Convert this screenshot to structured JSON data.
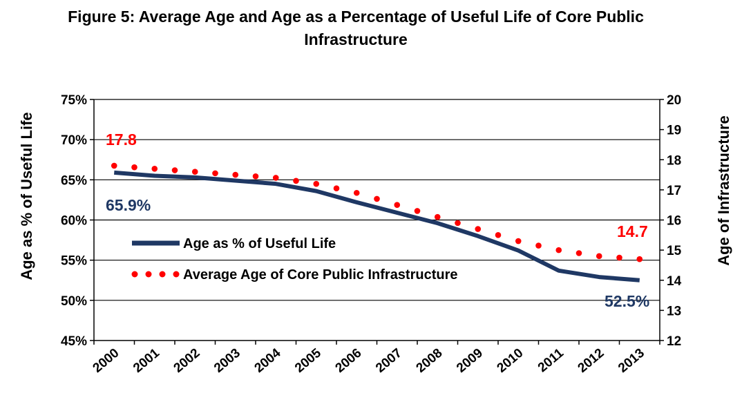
{
  "chart_data": {
    "type": "line",
    "title_line1": "Figure 5: Average Age and Age as a Percentage of Useful Life of Core Public",
    "title_line2": "Infrastructure",
    "categories": [
      "2000",
      "2001",
      "2002",
      "2003",
      "2004",
      "2005",
      "2006",
      "2007",
      "2008",
      "2009",
      "2010",
      "2011",
      "2012",
      "2013"
    ],
    "ylabel_left": "Age as % of Useful Life",
    "ylabel_right": "Age of Infrastructure",
    "ylim_left": [
      45,
      75
    ],
    "ylim_right": [
      12,
      20
    ],
    "yticks_left": [
      "45%",
      "50%",
      "55%",
      "60%",
      "65%",
      "70%",
      "75%"
    ],
    "yticks_right": [
      "12",
      "13",
      "14",
      "15",
      "16",
      "17",
      "18",
      "19",
      "20"
    ],
    "series": [
      {
        "name": "Age as % of Useful Life",
        "axis": "left",
        "color": "#1F3864",
        "style": "solid",
        "values": [
          65.9,
          65.5,
          65.3,
          64.9,
          64.5,
          63.6,
          62.2,
          60.9,
          59.6,
          58.0,
          56.2,
          53.7,
          52.9,
          52.5
        ]
      },
      {
        "name": "Average Age of Core Public Infrastructure",
        "axis": "right",
        "color": "#FF0000",
        "style": "dotted",
        "values": [
          17.8,
          17.7,
          17.6,
          17.5,
          17.4,
          17.2,
          16.9,
          16.5,
          16.1,
          15.7,
          15.3,
          15.0,
          14.8,
          14.7
        ]
      }
    ],
    "annotations": {
      "left_start": "65.9%",
      "left_end": "52.5%",
      "right_start": "17.8",
      "right_end": "14.7"
    }
  }
}
